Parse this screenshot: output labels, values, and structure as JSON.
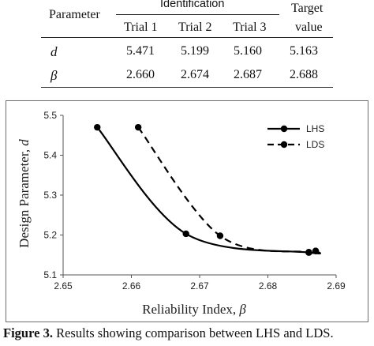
{
  "table": {
    "param_header": "Parameter",
    "ident_header": "Identification",
    "trials": [
      "Trial 1",
      "Trial 2",
      "Trial 3"
    ],
    "target_header_1": "Target",
    "target_header_2": "value",
    "rows": [
      {
        "symbol": "d",
        "values": [
          "5.471",
          "5.199",
          "5.160",
          "5.163"
        ]
      },
      {
        "symbol": "β",
        "values": [
          "2.660",
          "2.674",
          "2.687",
          "2.688"
        ]
      }
    ]
  },
  "chart_data": {
    "type": "line",
    "xlabel_text": "Reliability Index, ",
    "xlabel_symbol": "β",
    "ylabel_text": "Design Parameter, ",
    "ylabel_symbol": "d",
    "xlim": [
      2.65,
      2.69
    ],
    "ylim": [
      5.1,
      5.5
    ],
    "xticks": [
      "2.65",
      "2.66",
      "2.67",
      "2.68",
      "2.69"
    ],
    "yticks": [
      "5.1",
      "5.2",
      "5.3",
      "5.4",
      "5.5"
    ],
    "grid": false,
    "legend_position": "top-right",
    "series": [
      {
        "name": "LHS",
        "style": "solid",
        "color": "#000000",
        "x": [
          2.655,
          2.668,
          2.686,
          2.687
        ],
        "y": [
          5.47,
          5.203,
          5.156,
          5.16
        ]
      },
      {
        "name": "LDS",
        "style": "dashed",
        "color": "#000000",
        "x": [
          2.661,
          2.673,
          2.686,
          2.687
        ],
        "y": [
          5.47,
          5.198,
          5.157,
          5.16
        ]
      }
    ]
  },
  "caption": {
    "label": "Figure 3.",
    "text": " Results showing comparison between LHS and LDS."
  }
}
